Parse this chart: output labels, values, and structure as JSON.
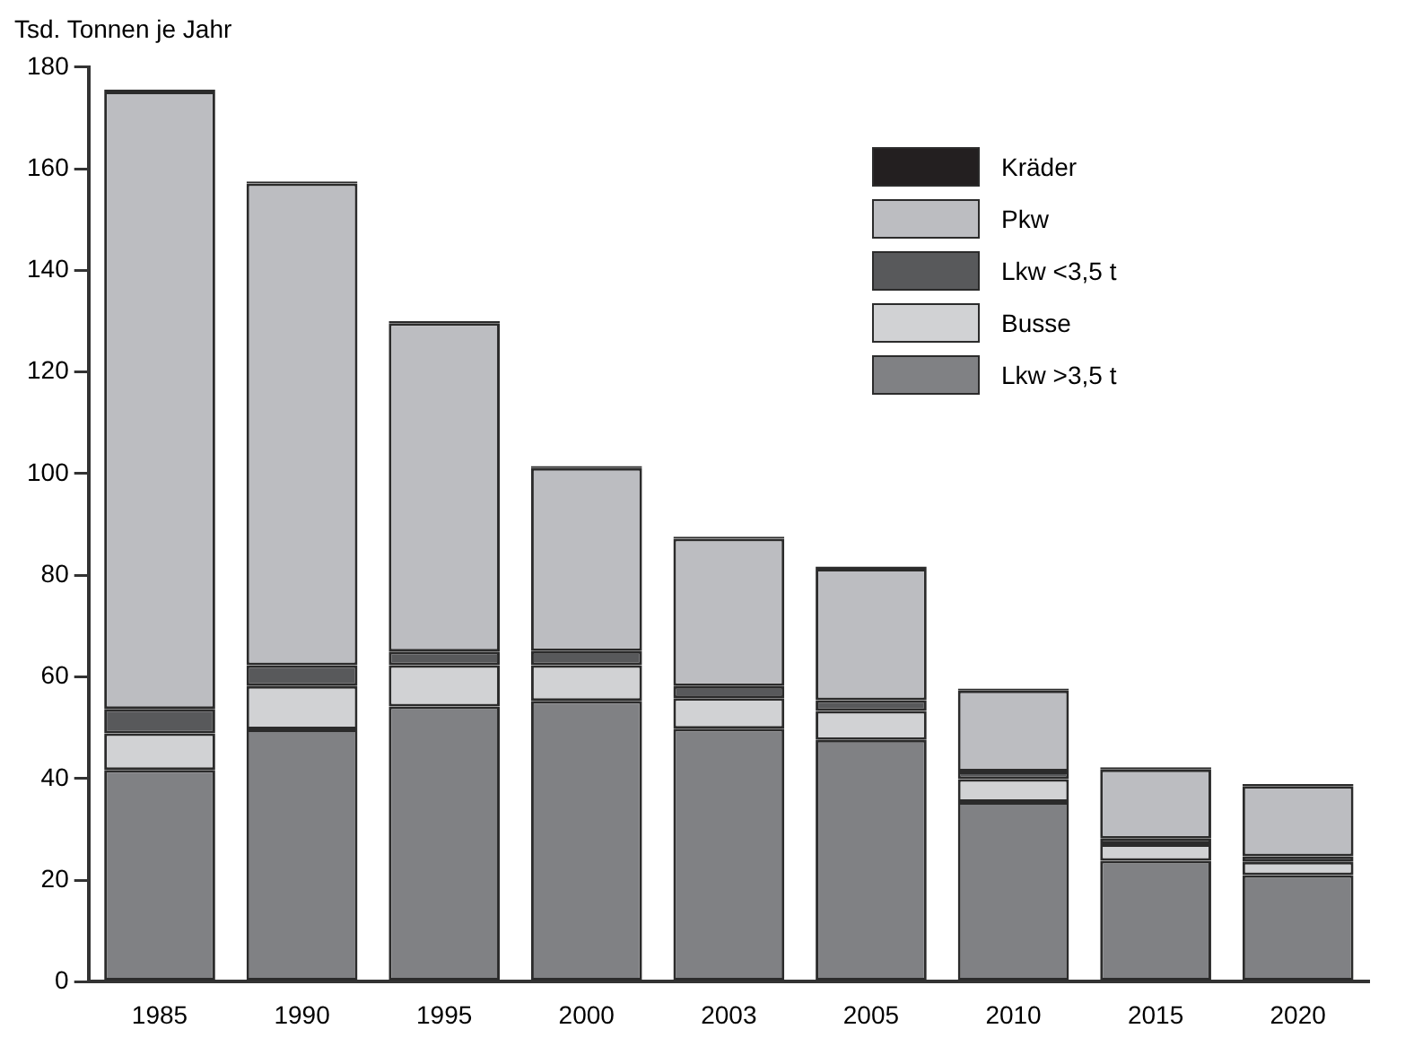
{
  "chart_data": {
    "type": "bar",
    "ylabel": "Tsd. Tonnen je Jahr",
    "categories": [
      "1985",
      "1990",
      "1995",
      "2000",
      "2003",
      "2005",
      "2010",
      "2015",
      "2020"
    ],
    "stacked": true,
    "ylim": [
      0,
      180
    ],
    "yticks": [
      0,
      20,
      40,
      60,
      80,
      100,
      120,
      140,
      160,
      180
    ],
    "grid": false,
    "legend": "top right",
    "series": [
      {
        "name": "Lkw >3,5 t",
        "color": "#808184",
        "values": [
          41.7,
          49.7,
          54.2,
          55.3,
          49.8,
          47.6,
          35.4,
          23.8,
          21.0
        ]
      },
      {
        "name": "Busse",
        "color": "#d1d2d4",
        "values": [
          7.2,
          8.5,
          8.1,
          7.0,
          6.0,
          5.7,
          4.5,
          3.3,
          2.6
        ]
      },
      {
        "name": "Lkw <3,5 t",
        "color": "#58595b",
        "values": [
          4.8,
          4.1,
          2.7,
          2.8,
          2.4,
          2.1,
          1.5,
          1.1,
          1.1
        ]
      },
      {
        "name": "Pkw",
        "color": "#bcbdc1",
        "values": [
          121.5,
          94.8,
          64.6,
          36.0,
          29.0,
          25.9,
          15.9,
          13.6,
          13.8
        ]
      },
      {
        "name": "Kräder",
        "color": "#231f20",
        "values": [
          0.4,
          0.4,
          0.4,
          0.4,
          0.4,
          0.4,
          0.4,
          0.4,
          0.4
        ]
      }
    ]
  }
}
